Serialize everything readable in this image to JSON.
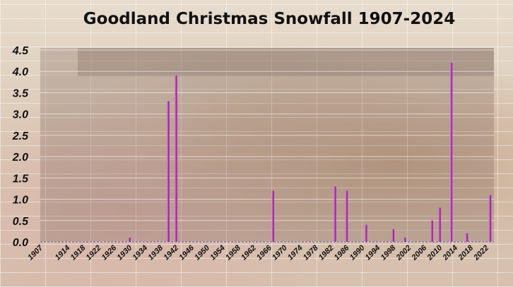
{
  "chart_data": {
    "type": "bar",
    "title": "Goodland Christmas Snowfall 1907-2024",
    "xlabel": "",
    "ylabel": "",
    "ylim": [
      0,
      4.5
    ],
    "yticks": [
      "0.0",
      "0.5",
      "1.0",
      "1.5",
      "2.0",
      "2.5",
      "3.0",
      "3.5",
      "4.0",
      "4.5"
    ],
    "xtick_labels": [
      "1907",
      "1914",
      "1918",
      "1922",
      "1926",
      "1930",
      "1934",
      "1938",
      "1942",
      "1946",
      "1950",
      "1954",
      "1958",
      "1962",
      "1966",
      "1970",
      "1974",
      "1978",
      "1982",
      "1986",
      "1990",
      "1994",
      "1998",
      "2002",
      "2006",
      "2010",
      "2014",
      "2018",
      "2022"
    ],
    "x_range": [
      1907,
      2024
    ],
    "grid": true,
    "bar_color": "#a42ca4",
    "bars": [
      {
        "year": 1930,
        "value": 0.1
      },
      {
        "year": 1940,
        "value": 3.3
      },
      {
        "year": 1942,
        "value": 3.9
      },
      {
        "year": 1967,
        "value": 1.2
      },
      {
        "year": 1983,
        "value": 1.3
      },
      {
        "year": 1986,
        "value": 1.2
      },
      {
        "year": 1991,
        "value": 0.4
      },
      {
        "year": 1998,
        "value": 0.3
      },
      {
        "year": 2001,
        "value": 0.1
      },
      {
        "year": 2008,
        "value": 0.5
      },
      {
        "year": 2010,
        "value": 0.8
      },
      {
        "year": 2013,
        "value": 4.2
      },
      {
        "year": 2017,
        "value": 0.2
      },
      {
        "year": 2023,
        "value": 1.1
      }
    ]
  }
}
